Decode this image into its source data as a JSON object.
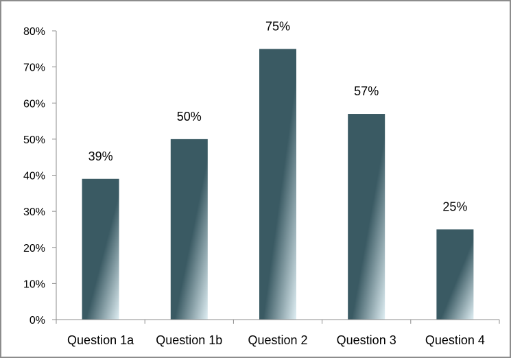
{
  "chart_data": {
    "type": "bar",
    "title": "",
    "xlabel": "",
    "ylabel": "",
    "categories": [
      "Question 1a",
      "Question 1b",
      "Question 2",
      "Question 3",
      "Question 4"
    ],
    "values": [
      39,
      50,
      75,
      57,
      25
    ],
    "value_labels": [
      "39%",
      "50%",
      "75%",
      "57%",
      "25%"
    ],
    "ylim": [
      0,
      80
    ],
    "y_ticks": [
      0,
      10,
      20,
      30,
      40,
      50,
      60,
      70,
      80
    ],
    "y_tick_labels": [
      "0%",
      "10%",
      "20%",
      "30%",
      "40%",
      "50%",
      "60%",
      "70%",
      "80%"
    ],
    "grid": false,
    "legend": "none",
    "colors": {
      "bar": "#3a5a63",
      "bar_highlight": "#dfeef3",
      "axis": "#8c8c8c"
    }
  }
}
